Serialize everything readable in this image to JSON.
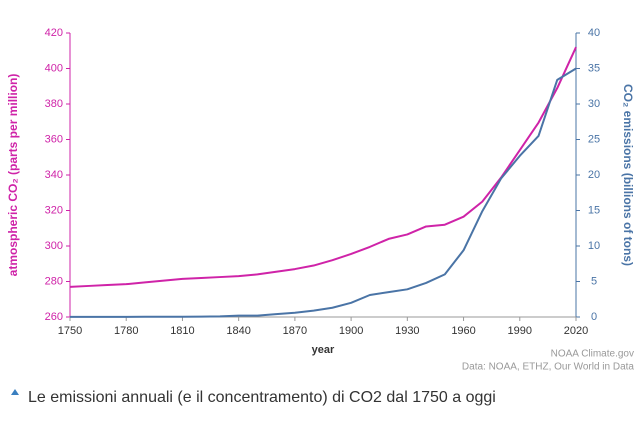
{
  "chart_data": {
    "type": "line",
    "x": [
      1750,
      1760,
      1770,
      1780,
      1790,
      1800,
      1810,
      1820,
      1830,
      1840,
      1850,
      1860,
      1870,
      1880,
      1890,
      1900,
      1910,
      1920,
      1930,
      1940,
      1950,
      1960,
      1970,
      1980,
      1990,
      2000,
      2010,
      2020
    ],
    "xlim": [
      1750,
      2020
    ],
    "xticks": [
      1750,
      1780,
      1810,
      1840,
      1870,
      1900,
      1930,
      1960,
      1990,
      2020
    ],
    "ylim": [
      260,
      420
    ],
    "yticks": [
      260,
      280,
      300,
      320,
      340,
      360,
      380,
      400,
      420
    ],
    "y2lim": [
      0,
      40
    ],
    "y2ticks": [
      0,
      5,
      10,
      15,
      20,
      25,
      30,
      35,
      40
    ],
    "xlabel": "year",
    "ylabel": "atmospheric CO₂ (parts per million)",
    "y2label": "CO₂ emissions (billions of tons)",
    "credit": "NOAA Climate.gov",
    "source": "Data: NOAA, ETHZ, Our World in Data",
    "series": [
      {
        "name": "atmospheric CO₂",
        "color": "#cf23a8",
        "values": [
          277,
          277.5,
          278,
          278.5,
          279.5,
          280.5,
          281.5,
          282,
          282.5,
          283,
          284,
          285.5,
          287,
          289,
          292,
          295.5,
          299.5,
          304,
          306.5,
          311,
          312,
          316.5,
          325,
          338.5,
          354,
          369.5,
          389,
          412
        ]
      },
      {
        "name": "CO₂ emissions",
        "color": "#4a74a6",
        "axis": "y2",
        "values": [
          0.01,
          0.01,
          0.02,
          0.02,
          0.03,
          0.03,
          0.04,
          0.05,
          0.08,
          0.2,
          0.2,
          0.4,
          0.6,
          0.9,
          1.3,
          2.0,
          3.1,
          3.5,
          3.9,
          4.8,
          6.0,
          9.4,
          14.9,
          19.5,
          22.7,
          25.5,
          33.4,
          35.0
        ]
      }
    ]
  },
  "caption": "Le emissioni annuali (e il concentramento) di CO2 dal 1750 a oggi"
}
